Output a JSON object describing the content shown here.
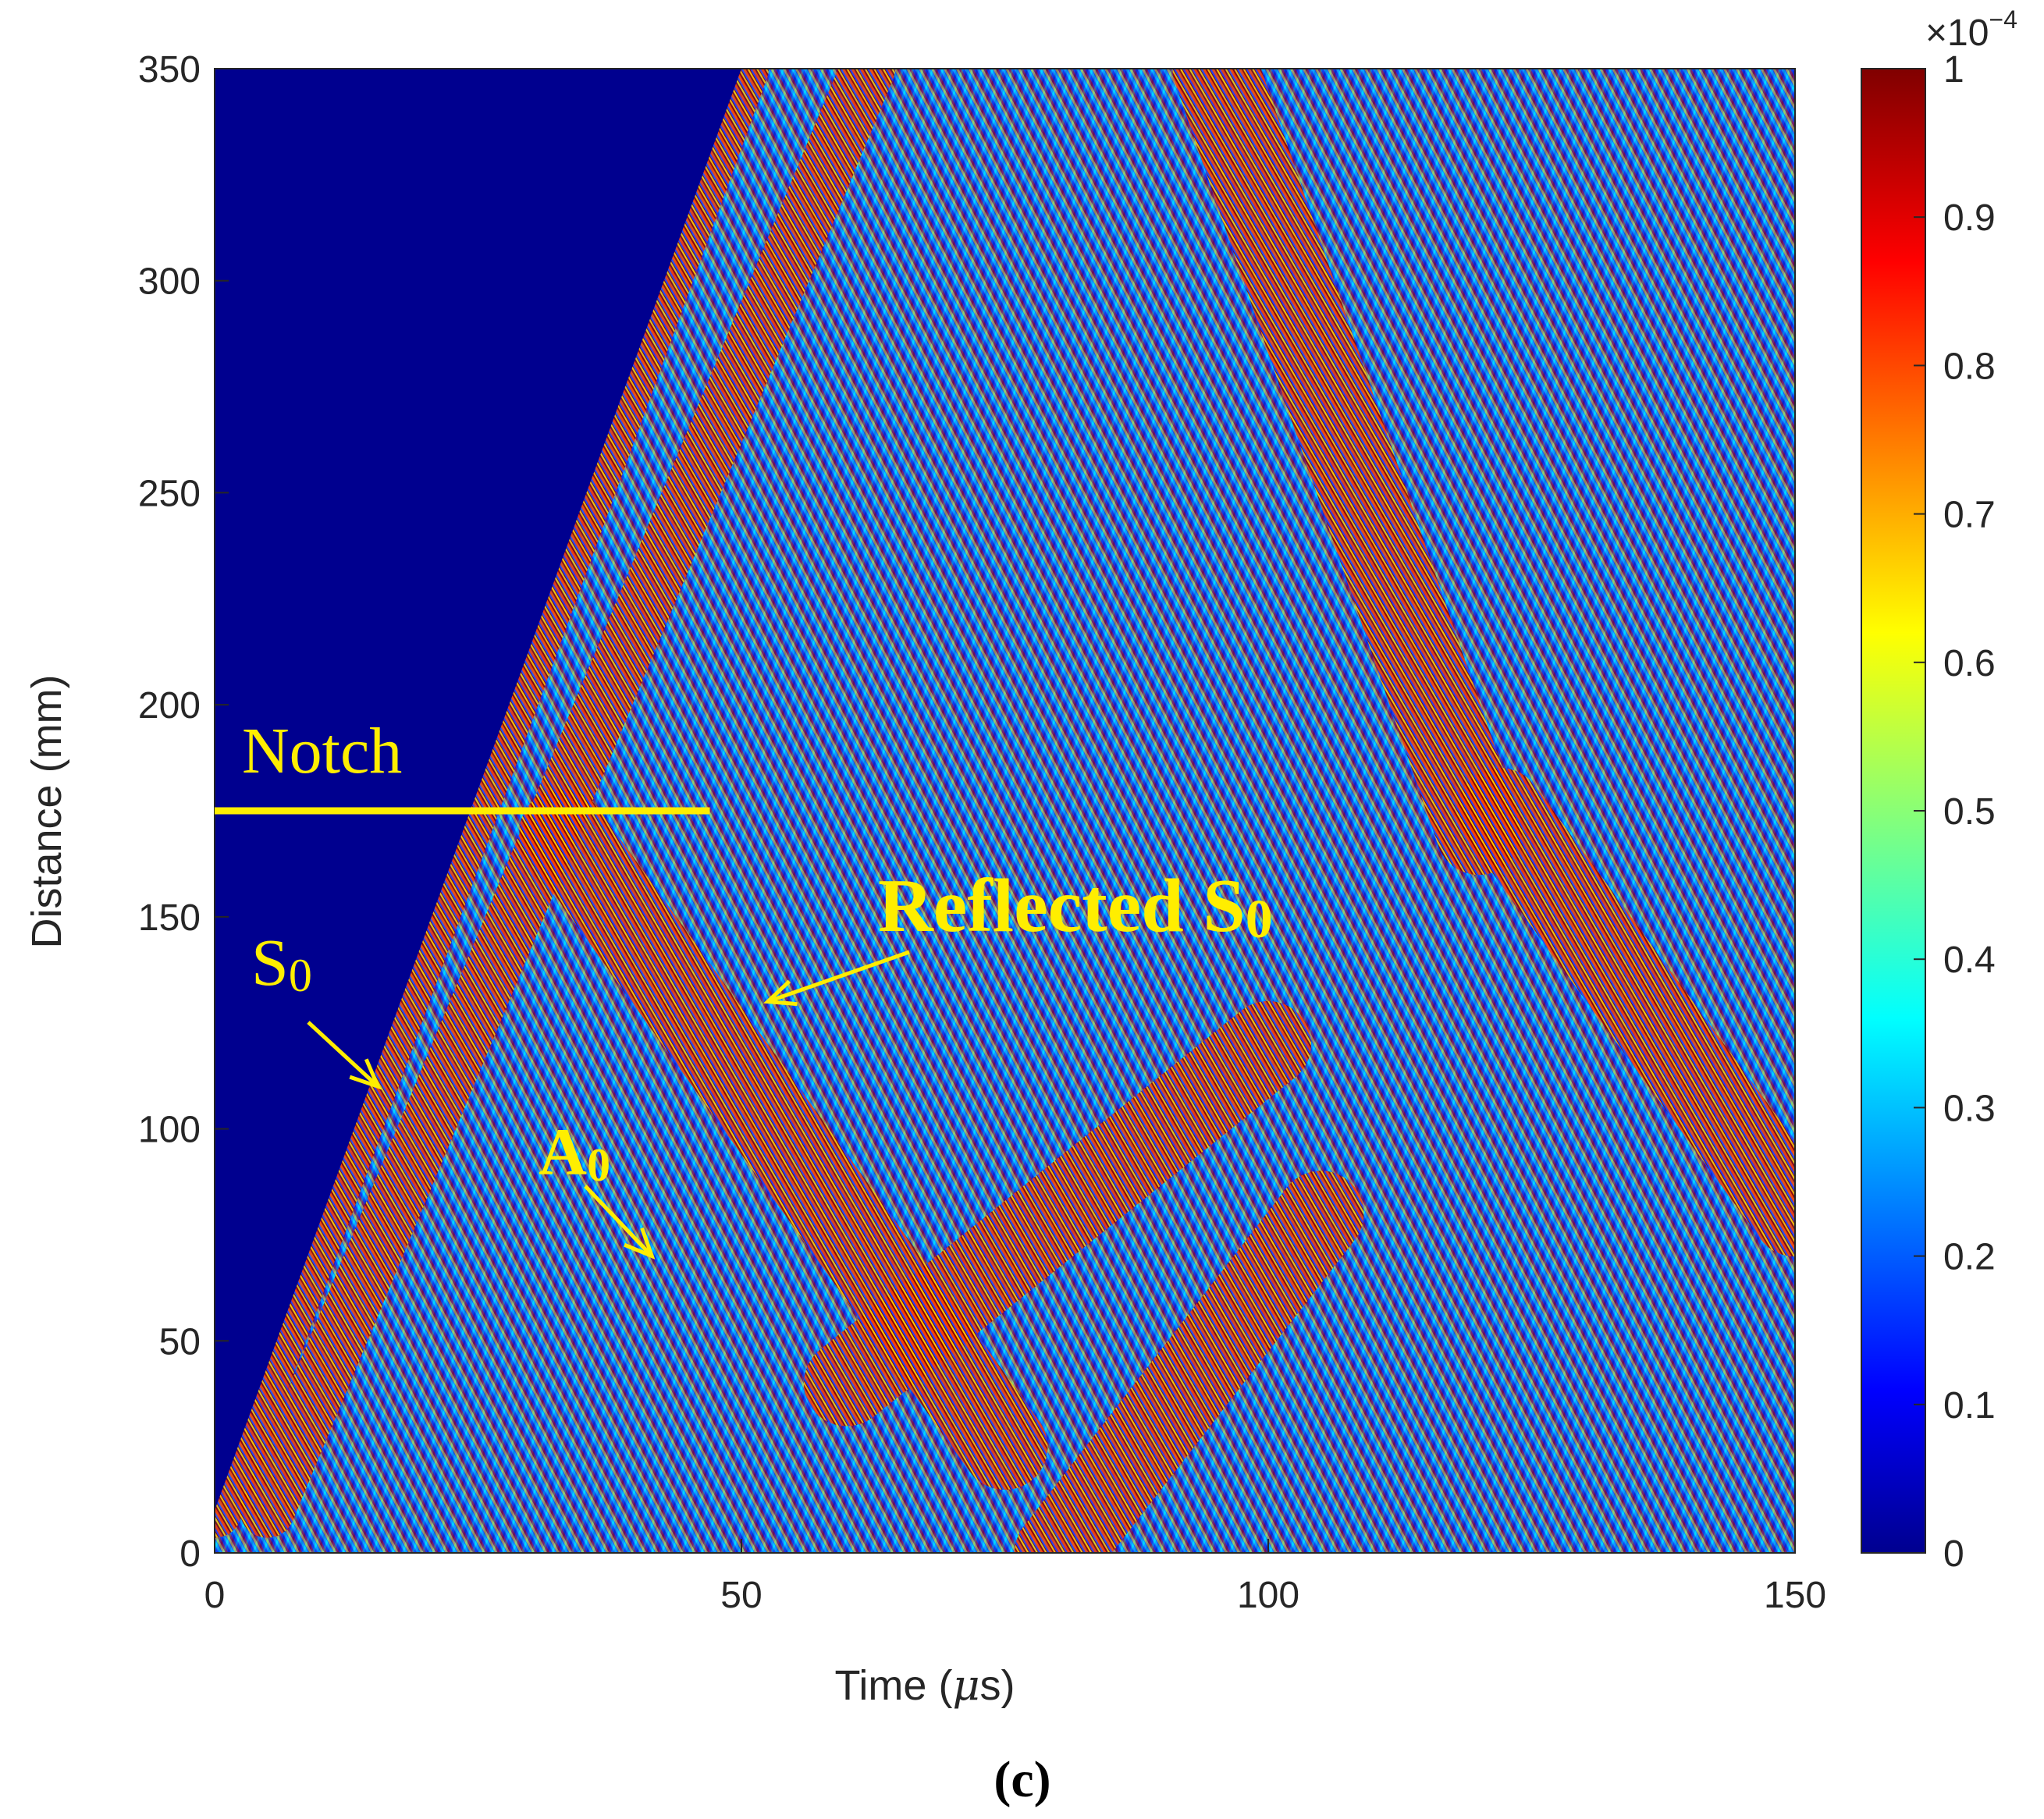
{
  "chart_data": {
    "type": "heatmap",
    "title": "",
    "xlabel_main": "Time (",
    "xlabel_unit_symbol": "μ",
    "xlabel_unit_rest": "s)",
    "ylabel": "Distance (mm)",
    "xlim": [
      0,
      150
    ],
    "ylim": [
      0,
      350
    ],
    "x_ticks": [
      0,
      50,
      100,
      150
    ],
    "y_ticks": [
      0,
      50,
      100,
      150,
      200,
      250,
      300,
      350
    ],
    "colorbar": {
      "colormap": "jet",
      "range": [
        0,
        1
      ],
      "ticks": [
        "0",
        "0.1",
        "0.2",
        "0.3",
        "0.4",
        "0.5",
        "0.6",
        "0.7",
        "0.8",
        "0.9",
        "1"
      ],
      "exponent_prefix": "×10",
      "exponent_power": "−4"
    },
    "wave_fronts": [
      {
        "from": [
          0,
          10
        ],
        "to": [
          50,
          350
        ]
      },
      {
        "from": [
          5,
          10
        ],
        "to": [
          62,
          350
        ]
      },
      {
        "from": [
          33,
          170
        ],
        "to": [
          75,
          25
        ]
      },
      {
        "from": [
          60,
          40
        ],
        "to": [
          100,
          120
        ]
      },
      {
        "from": [
          80,
          0
        ],
        "to": [
          105,
          80
        ]
      },
      {
        "from": [
          95,
          350
        ],
        "to": [
          120,
          170
        ]
      },
      {
        "from": [
          122,
          175
        ],
        "to": [
          150,
          80
        ]
      }
    ],
    "notch": {
      "distance": 175,
      "time_end": 47,
      "label": "Notch"
    },
    "annotations": [
      {
        "label": "S",
        "subscript": "0",
        "arrow_tip": [
          15.5,
          110
        ]
      },
      {
        "label": "A",
        "subscript": "0",
        "arrow_tip": [
          41.5,
          70
        ]
      },
      {
        "label": "Reflected S",
        "subscript": "0",
        "arrow_tip": [
          52.5,
          130
        ]
      }
    ],
    "panel_label": "(c)",
    "colors": {
      "background": "#00008f",
      "annotation": "#ffee00"
    }
  }
}
